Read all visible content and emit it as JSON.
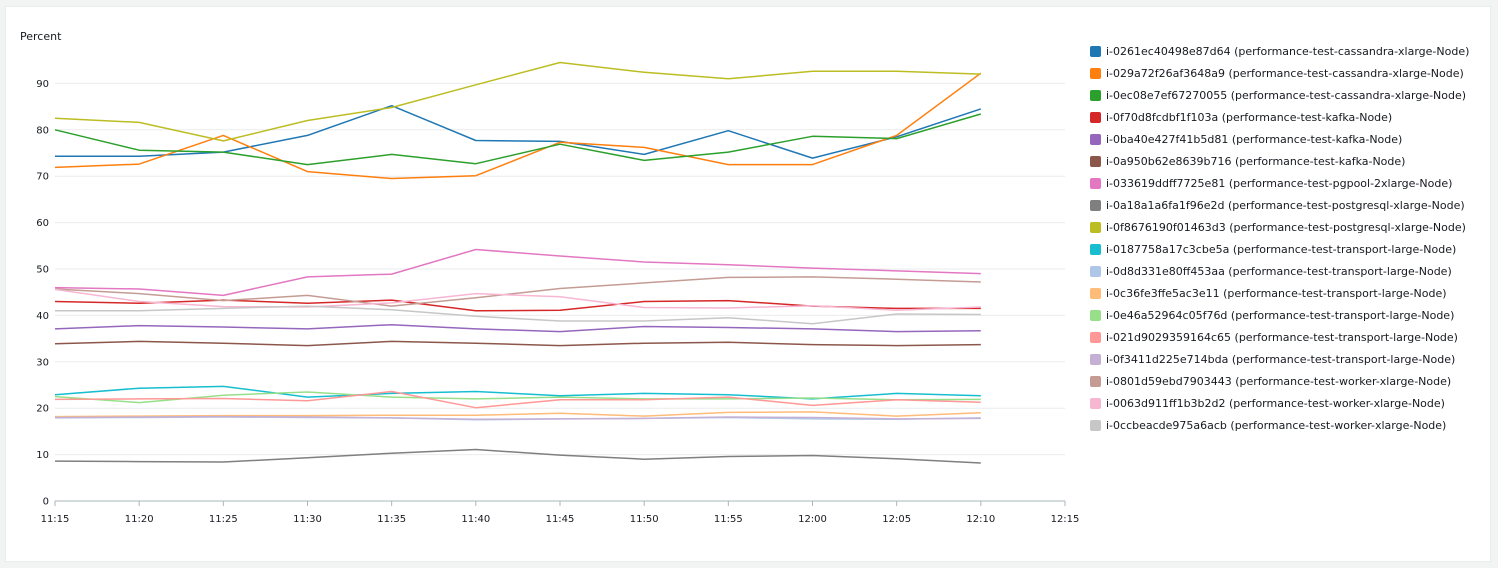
{
  "chart_data": {
    "type": "line",
    "ylabel": "Percent",
    "xlabel": "",
    "title": "",
    "ylim": [
      0,
      100
    ],
    "yticks": [
      0,
      10,
      20,
      30,
      40,
      50,
      60,
      70,
      80,
      90
    ],
    "x": [
      "11:15",
      "11:20",
      "11:25",
      "11:30",
      "11:35",
      "11:40",
      "11:45",
      "11:50",
      "11:55",
      "12:00",
      "12:05",
      "12:10"
    ],
    "xticks": [
      "11:15",
      "11:20",
      "11:25",
      "11:30",
      "11:35",
      "11:40",
      "11:45",
      "11:50",
      "11:55",
      "12:00",
      "12:05",
      "12:10",
      "12:15"
    ],
    "grid": "horizontal",
    "legend_placement": "right",
    "series": [
      {
        "name": "i-0261ec40498e87d64 (performance-test-cassandra-xlarge-Node)",
        "color": "#1f77b4",
        "values": [
          74.3,
          74.3,
          75.2,
          78.8,
          85.2,
          77.7,
          77.5,
          74.7,
          79.8,
          73.9,
          78.5,
          84.5
        ]
      },
      {
        "name": "i-029a72f26af3648a9 (performance-test-cassandra-xlarge-Node)",
        "color": "#ff7f0e",
        "values": [
          71.9,
          72.6,
          78.8,
          71.0,
          69.5,
          70.1,
          77.3,
          76.2,
          72.5,
          72.5,
          78.8,
          92.2
        ]
      },
      {
        "name": "i-0ec08e7ef67270055 (performance-test-cassandra-xlarge-Node)",
        "color": "#2ca02c",
        "values": [
          80.0,
          75.6,
          75.2,
          72.5,
          74.7,
          72.7,
          76.9,
          73.4,
          75.2,
          78.6,
          78.1,
          83.4
        ]
      },
      {
        "name": "i-0f70d8fcdbf1f103a (performance-test-kafka-Node)",
        "color": "#d62728",
        "values": [
          43.0,
          42.6,
          43.3,
          42.6,
          43.3,
          41.0,
          41.1,
          43.0,
          43.2,
          42.0,
          41.5,
          41.5
        ]
      },
      {
        "name": "i-0ba40e427f41b5d81 (performance-test-kafka-Node)",
        "color": "#9467bd",
        "values": [
          37.1,
          37.8,
          37.5,
          37.1,
          38.0,
          37.1,
          36.5,
          37.6,
          37.4,
          37.1,
          36.5,
          36.7
        ]
      },
      {
        "name": "i-0a950b62e8639b716 (performance-test-kafka-Node)",
        "color": "#8c564b",
        "values": [
          33.9,
          34.4,
          34.0,
          33.5,
          34.4,
          34.0,
          33.5,
          34.0,
          34.2,
          33.7,
          33.5,
          33.7
        ]
      },
      {
        "name": "i-033619ddff7725e81 (performance-test-pgpool-2xlarge-Node)",
        "color": "#e377c2",
        "values": [
          46.0,
          45.7,
          44.3,
          48.3,
          48.9,
          54.2,
          52.8,
          51.5,
          50.9,
          50.2,
          49.6,
          49.0
        ]
      },
      {
        "name": "i-0a18a1a6fa1f96e2d (performance-test-postgresql-xlarge-Node)",
        "color": "#7f7f7f",
        "values": [
          8.6,
          8.5,
          8.4,
          9.3,
          10.3,
          11.1,
          9.9,
          9.0,
          9.6,
          9.8,
          9.1,
          8.2
        ]
      },
      {
        "name": "i-0f8676190f01463d3 (performance-test-postgresql-xlarge-Node)",
        "color": "#bcbd22",
        "values": [
          82.5,
          81.6,
          77.6,
          82.0,
          84.8,
          89.7,
          94.5,
          92.4,
          91.0,
          92.6,
          92.6,
          92.0
        ]
      },
      {
        "name": "i-0187758a17c3cbe5a (performance-test-transport-large-Node)",
        "color": "#17becf",
        "values": [
          22.9,
          24.3,
          24.7,
          22.4,
          23.2,
          23.6,
          22.7,
          23.2,
          22.9,
          22.0,
          23.2,
          22.7
        ]
      },
      {
        "name": "i-0d8d331e80ff453aa (performance-test-transport-large-Node)",
        "color": "#aec7e8",
        "values": [
          17.9,
          18.0,
          18.1,
          18.0,
          17.9,
          17.5,
          17.7,
          17.8,
          18.0,
          17.7,
          17.6,
          17.9
        ]
      },
      {
        "name": "i-0c36fe3ffe5ac3e11 (performance-test-transport-large-Node)",
        "color": "#ffbb78",
        "values": [
          18.2,
          18.3,
          18.4,
          18.4,
          18.5,
          18.5,
          18.9,
          18.3,
          19.1,
          19.2,
          18.3,
          19.0
        ]
      },
      {
        "name": "i-0e46a52964c05f76d (performance-test-transport-large-Node)",
        "color": "#98df8a",
        "values": [
          22.5,
          21.2,
          22.8,
          23.5,
          22.4,
          22.0,
          22.4,
          22.0,
          22.0,
          22.2,
          21.8,
          21.9
        ]
      },
      {
        "name": "i-021d9029359164c65 (performance-test-transport-large-Node)",
        "color": "#ff9896",
        "values": [
          21.9,
          22.0,
          22.1,
          21.6,
          23.6,
          20.1,
          21.8,
          21.8,
          22.4,
          20.6,
          21.8,
          21.3
        ]
      },
      {
        "name": "i-0f3411d225e714bda (performance-test-transport-large-Node)",
        "color": "#c5b0d5",
        "values": [
          18.0,
          18.1,
          18.2,
          18.1,
          17.9,
          17.6,
          17.7,
          17.8,
          18.1,
          18.0,
          17.7,
          17.8
        ]
      },
      {
        "name": "i-0801d59ebd7903443 (performance-test-worker-xlarge-Node)",
        "color": "#c49c94",
        "values": [
          45.7,
          44.7,
          43.2,
          44.3,
          42.0,
          43.8,
          45.8,
          47.0,
          48.2,
          48.3,
          47.8,
          47.2
        ]
      },
      {
        "name": "i-0063d911ff1b3b2d2 (performance-test-worker-xlarge-Node)",
        "color": "#f7b6d2",
        "values": [
          45.6,
          43.0,
          41.9,
          41.8,
          42.7,
          44.7,
          44.0,
          41.7,
          41.6,
          42.1,
          41.1,
          41.8
        ]
      },
      {
        "name": "i-0ccbeacde975a6acb (performance-test-worker-xlarge-Node)",
        "color": "#c7c7c7",
        "values": [
          41.0,
          41.0,
          41.5,
          42.0,
          41.2,
          39.8,
          38.8,
          38.8,
          39.5,
          38.2,
          40.3,
          40.2
        ]
      }
    ]
  }
}
